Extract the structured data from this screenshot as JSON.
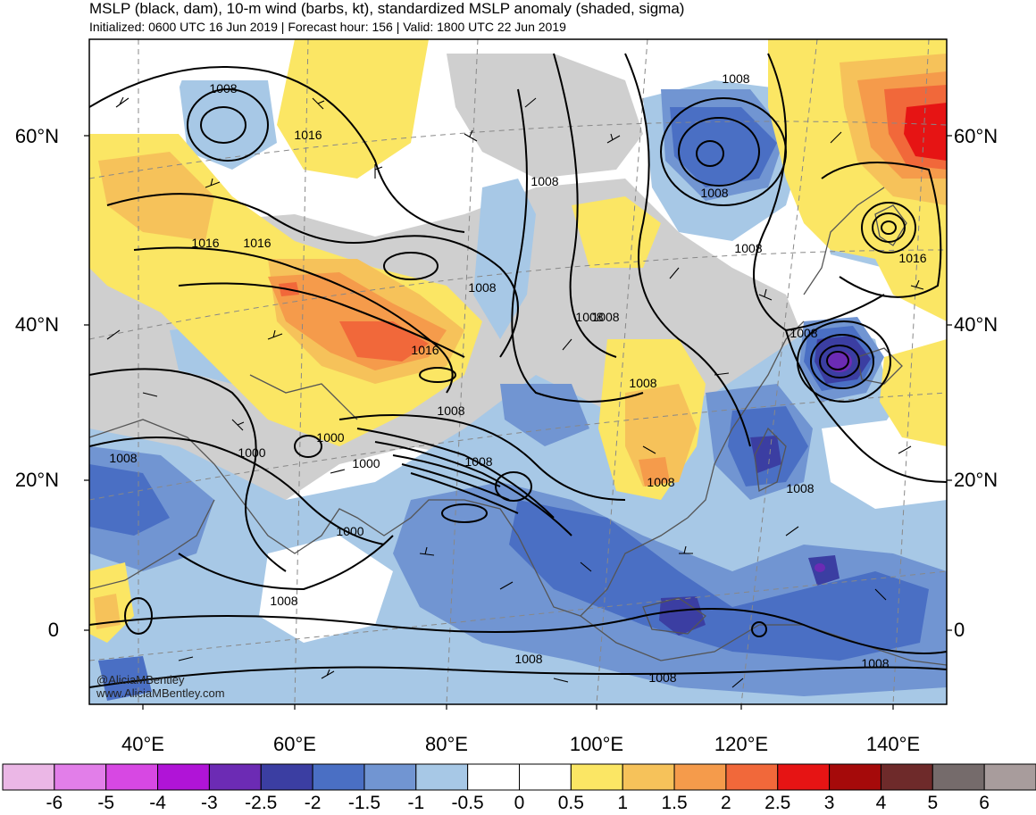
{
  "header": {
    "line1": "MSLP (black, dam), 10-m wind (barbs, kt), standardized MSLP anomaly (shaded, sigma)",
    "line2": "Initialized: 0600 UTC 16 Jun 2019 | Forecast hour: 156 | Valid: 1800 UTC 22 Jun 2019"
  },
  "axes": {
    "lat_labels": [
      "60°N",
      "40°N",
      "20°N",
      "0"
    ],
    "lon_labels": [
      "40°E",
      "60°E",
      "80°E",
      "100°E",
      "120°E",
      "140°E"
    ]
  },
  "contour_labels": [
    "1008",
    "1016",
    "1016",
    "1016",
    "1008",
    "1008",
    "1016",
    "1008",
    "1008",
    "1000",
    "1000",
    "1008",
    "1000",
    "1008",
    "1008",
    "1008",
    "1008",
    "1008",
    "1000",
    "1008",
    "1008",
    "1008",
    "1008",
    "1016",
    "1008",
    "1008",
    "1008",
    "1008"
  ],
  "credits": [
    "@AliciaMBentley",
    "www.AliciaMBentley.com"
  ],
  "colorbar": {
    "colors": [
      "#ebb7e6",
      "#e27ee9",
      "#d748e3",
      "#b014d7",
      "#6c2bb4",
      "#3b3ea2",
      "#4a6fc4",
      "#7195d2",
      "#a7c8e6",
      "#ffffff",
      "#ffffff",
      "#fbe664",
      "#f6c25a",
      "#f59b4b",
      "#f1683a",
      "#e61414",
      "#a50a0a",
      "#6e2a2a",
      "#756b6b",
      "#a89c9c"
    ],
    "labels": [
      "-6",
      "-5",
      "-4",
      "-3",
      "-2.5",
      "-2",
      "-1.5",
      "-1",
      "-0.5",
      "0",
      "0.5",
      "1",
      "1.5",
      "2",
      "2.5",
      "3",
      "4",
      "5",
      "6"
    ]
  },
  "legend_colors": {
    "gray_shade": "#cfcfcf",
    "contour": "#000000",
    "coastline": "#555555"
  }
}
